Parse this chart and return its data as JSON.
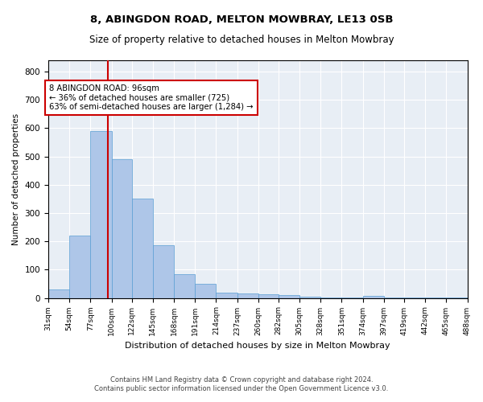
{
  "title1": "8, ABINGDON ROAD, MELTON MOWBRAY, LE13 0SB",
  "title2": "Size of property relative to detached houses in Melton Mowbray",
  "xlabel": "Distribution of detached houses by size in Melton Mowbray",
  "ylabel": "Number of detached properties",
  "annotation_line1": "8 ABINGDON ROAD: 96sqm",
  "annotation_line2": "← 36% of detached houses are smaller (725)",
  "annotation_line3": "63% of semi-detached houses are larger (1,284) →",
  "bar_left_edges": [
    31,
    54,
    77,
    100,
    122,
    145,
    168,
    191,
    214,
    237,
    260,
    282,
    305,
    328,
    351,
    374,
    397,
    419,
    442,
    465
  ],
  "bar_widths": [
    23,
    23,
    23,
    22,
    23,
    23,
    23,
    23,
    23,
    23,
    22,
    23,
    23,
    23,
    23,
    23,
    22,
    23,
    23,
    23
  ],
  "bar_heights": [
    30,
    220,
    590,
    490,
    350,
    185,
    83,
    50,
    20,
    15,
    13,
    10,
    5,
    3,
    2,
    8,
    1,
    1,
    1,
    1
  ],
  "bar_color": "#aec6e8",
  "bar_edge_color": "#5a9fd4",
  "vline_color": "#cc0000",
  "vline_x": 96,
  "ylim": [
    0,
    840
  ],
  "yticks": [
    0,
    100,
    200,
    300,
    400,
    500,
    600,
    700,
    800
  ],
  "tick_labels": [
    "31sqm",
    "54sqm",
    "77sqm",
    "100sqm",
    "122sqm",
    "145sqm",
    "168sqm",
    "191sqm",
    "214sqm",
    "237sqm",
    "260sqm",
    "282sqm",
    "305sqm",
    "328sqm",
    "351sqm",
    "374sqm",
    "397sqm",
    "419sqm",
    "442sqm",
    "465sqm",
    "488sqm"
  ],
  "footer1": "Contains HM Land Registry data © Crown copyright and database right 2024.",
  "footer2": "Contains public sector information licensed under the Open Government Licence v3.0.",
  "plot_background": "#e8eef5"
}
